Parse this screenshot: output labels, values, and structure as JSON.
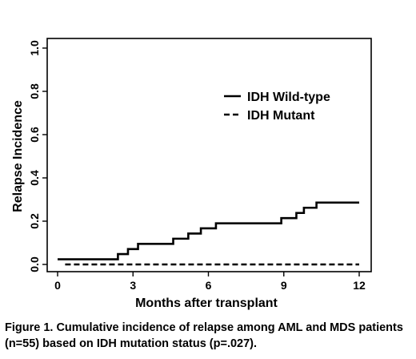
{
  "chart_data": {
    "type": "line",
    "xlabel": "Months after transplant",
    "ylabel": "Relapse Incidence",
    "xlim": [
      0,
      12
    ],
    "ylim": [
      0,
      1
    ],
    "x_ticks": [
      "0",
      "3",
      "6",
      "9",
      "12"
    ],
    "y_ticks": [
      "0.0",
      "0.2",
      "0.4",
      "0.6",
      "0.8",
      "1.0"
    ],
    "grid": false,
    "legend_position": "right",
    "series": [
      {
        "name": "IDH Wild-type",
        "style": "solid",
        "step": true,
        "x": [
          0,
          2.4,
          2.8,
          3.2,
          4.6,
          5.2,
          5.7,
          6.3,
          8.9,
          9.5,
          9.8,
          10.3,
          12
        ],
        "y": [
          0.024,
          0.048,
          0.071,
          0.095,
          0.119,
          0.143,
          0.167,
          0.19,
          0.214,
          0.238,
          0.262,
          0.286,
          0.286
        ]
      },
      {
        "name": "IDH Mutant",
        "style": "dashed",
        "step": true,
        "x": [
          0.3,
          12
        ],
        "y": [
          0.0,
          0.0
        ]
      }
    ]
  },
  "caption": {
    "lead": "Figure 1",
    "text": ". Cumulative incidence of relapse among AML and MDS patients (n=55) based on IDH mutation status (p=.027)."
  }
}
